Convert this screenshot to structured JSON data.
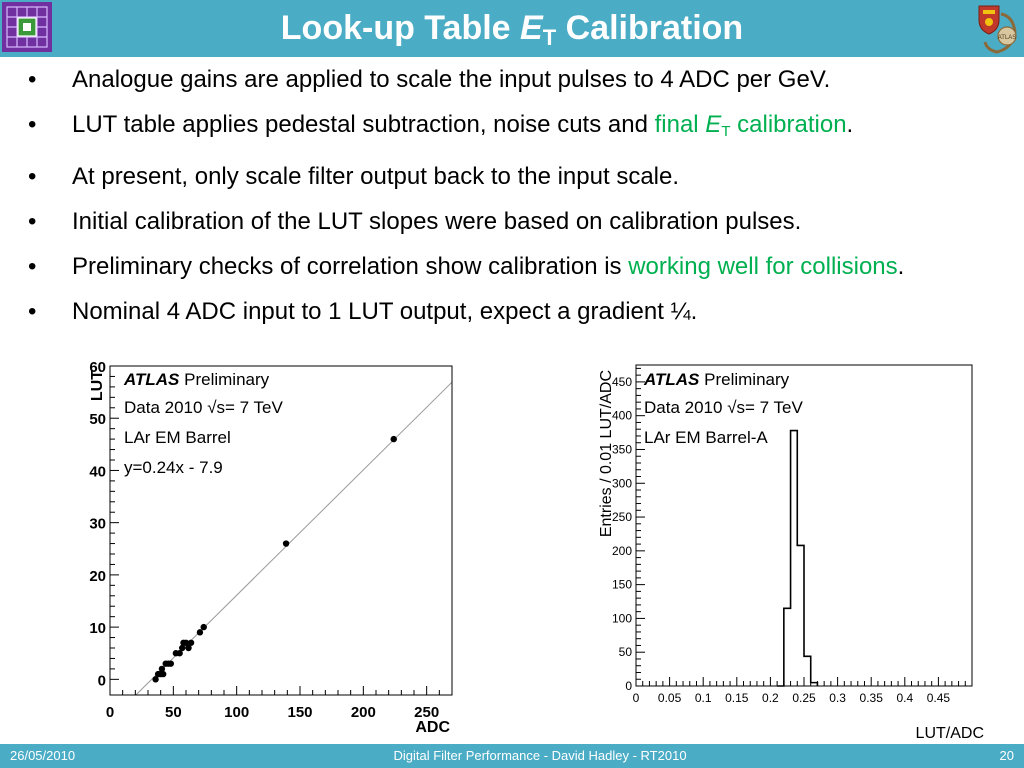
{
  "slide": {
    "title_main": "Look-up Table ",
    "title_var": "E",
    "title_sub": "T",
    "title_end": " Calibration",
    "logo_left_icon": "grid-logo-icon",
    "logo_right_icon": "crest-logo-icon"
  },
  "bullets": {
    "b1": "Analogue gains are applied to scale the input pulses to 4 ADC per GeV.",
    "b2_a": "LUT table applies pedestal subtraction, noise cuts and ",
    "b2_green_a": "final ",
    "b2_var": "E",
    "b2_sub": "T",
    "b2_green_b": " calibration",
    "b2_end": ".",
    "b3": "At present, only scale filter output back to the input scale.",
    "b4": "Initial calibration of the LUT slopes were based on calibration pulses.",
    "b5_a": "Preliminary checks of correlation show calibration is ",
    "b5_green": "working well for collisions",
    "b5_end": ".",
    "b6": "Nominal 4 ADC input to 1 LUT output,  expect a gradient ¼."
  },
  "footer": {
    "date": "26/05/2010",
    "center": "Digital Filter Performance  - David Hadley - RT2010",
    "page": "20"
  },
  "colors": {
    "title_bar": "#4bacc6",
    "accent_green": "#00b050"
  },
  "chart_data": [
    {
      "type": "scatter",
      "xlabel": "ADC",
      "ylabel": "LUT",
      "xlim": [
        0,
        270
      ],
      "ylim": [
        -3,
        60
      ],
      "x_ticks": [
        "0",
        "50",
        "100",
        "150",
        "200",
        "250"
      ],
      "y_ticks": [
        "0",
        "10",
        "20",
        "30",
        "40",
        "50",
        "60"
      ],
      "labels": {
        "experiment": "ATLAS",
        "status": " Preliminary",
        "data_prefix": "Data 2010 ",
        "sqrt_symbol": "√",
        "data_suffix": "s= 7 TeV",
        "region": "LAr EM Barrel",
        "fit": "y=0.24x - 7.9"
      },
      "fit": {
        "slope": 0.24,
        "intercept": -7.9
      },
      "x": [
        36,
        38,
        40,
        41,
        42,
        44,
        46,
        48,
        52,
        55,
        57,
        58,
        60,
        62,
        64,
        71,
        74,
        139,
        224
      ],
      "y": [
        0,
        1,
        1,
        2,
        1,
        3,
        3,
        3,
        5,
        5,
        6,
        7,
        7,
        6,
        7,
        9,
        10,
        26,
        46
      ]
    },
    {
      "type": "bar",
      "xlabel": "LUT/ADC",
      "ylabel": "Entries / 0.01 LUT/ADC",
      "xlim": [
        0,
        0.5
      ],
      "ylim": [
        0,
        475
      ],
      "x_ticks": [
        "0",
        "0.05",
        "0.1",
        "0.15",
        "0.2",
        "0.25",
        "0.3",
        "0.35",
        "0.4",
        "0.45"
      ],
      "y_ticks": [
        "0",
        "50",
        "100",
        "150",
        "200",
        "250",
        "300",
        "350",
        "400",
        "450"
      ],
      "labels": {
        "experiment": "ATLAS",
        "status": " Preliminary",
        "data_prefix": "Data 2010 ",
        "sqrt_symbol": "√",
        "data_suffix": "s= 7 TeV",
        "region": "LAr EM Barrel-A"
      },
      "bin_width": 0.01,
      "bin_edges": [
        0.21,
        0.22,
        0.23,
        0.24,
        0.25,
        0.26,
        0.27
      ],
      "values": [
        0,
        115,
        378,
        208,
        44,
        5
      ]
    }
  ]
}
